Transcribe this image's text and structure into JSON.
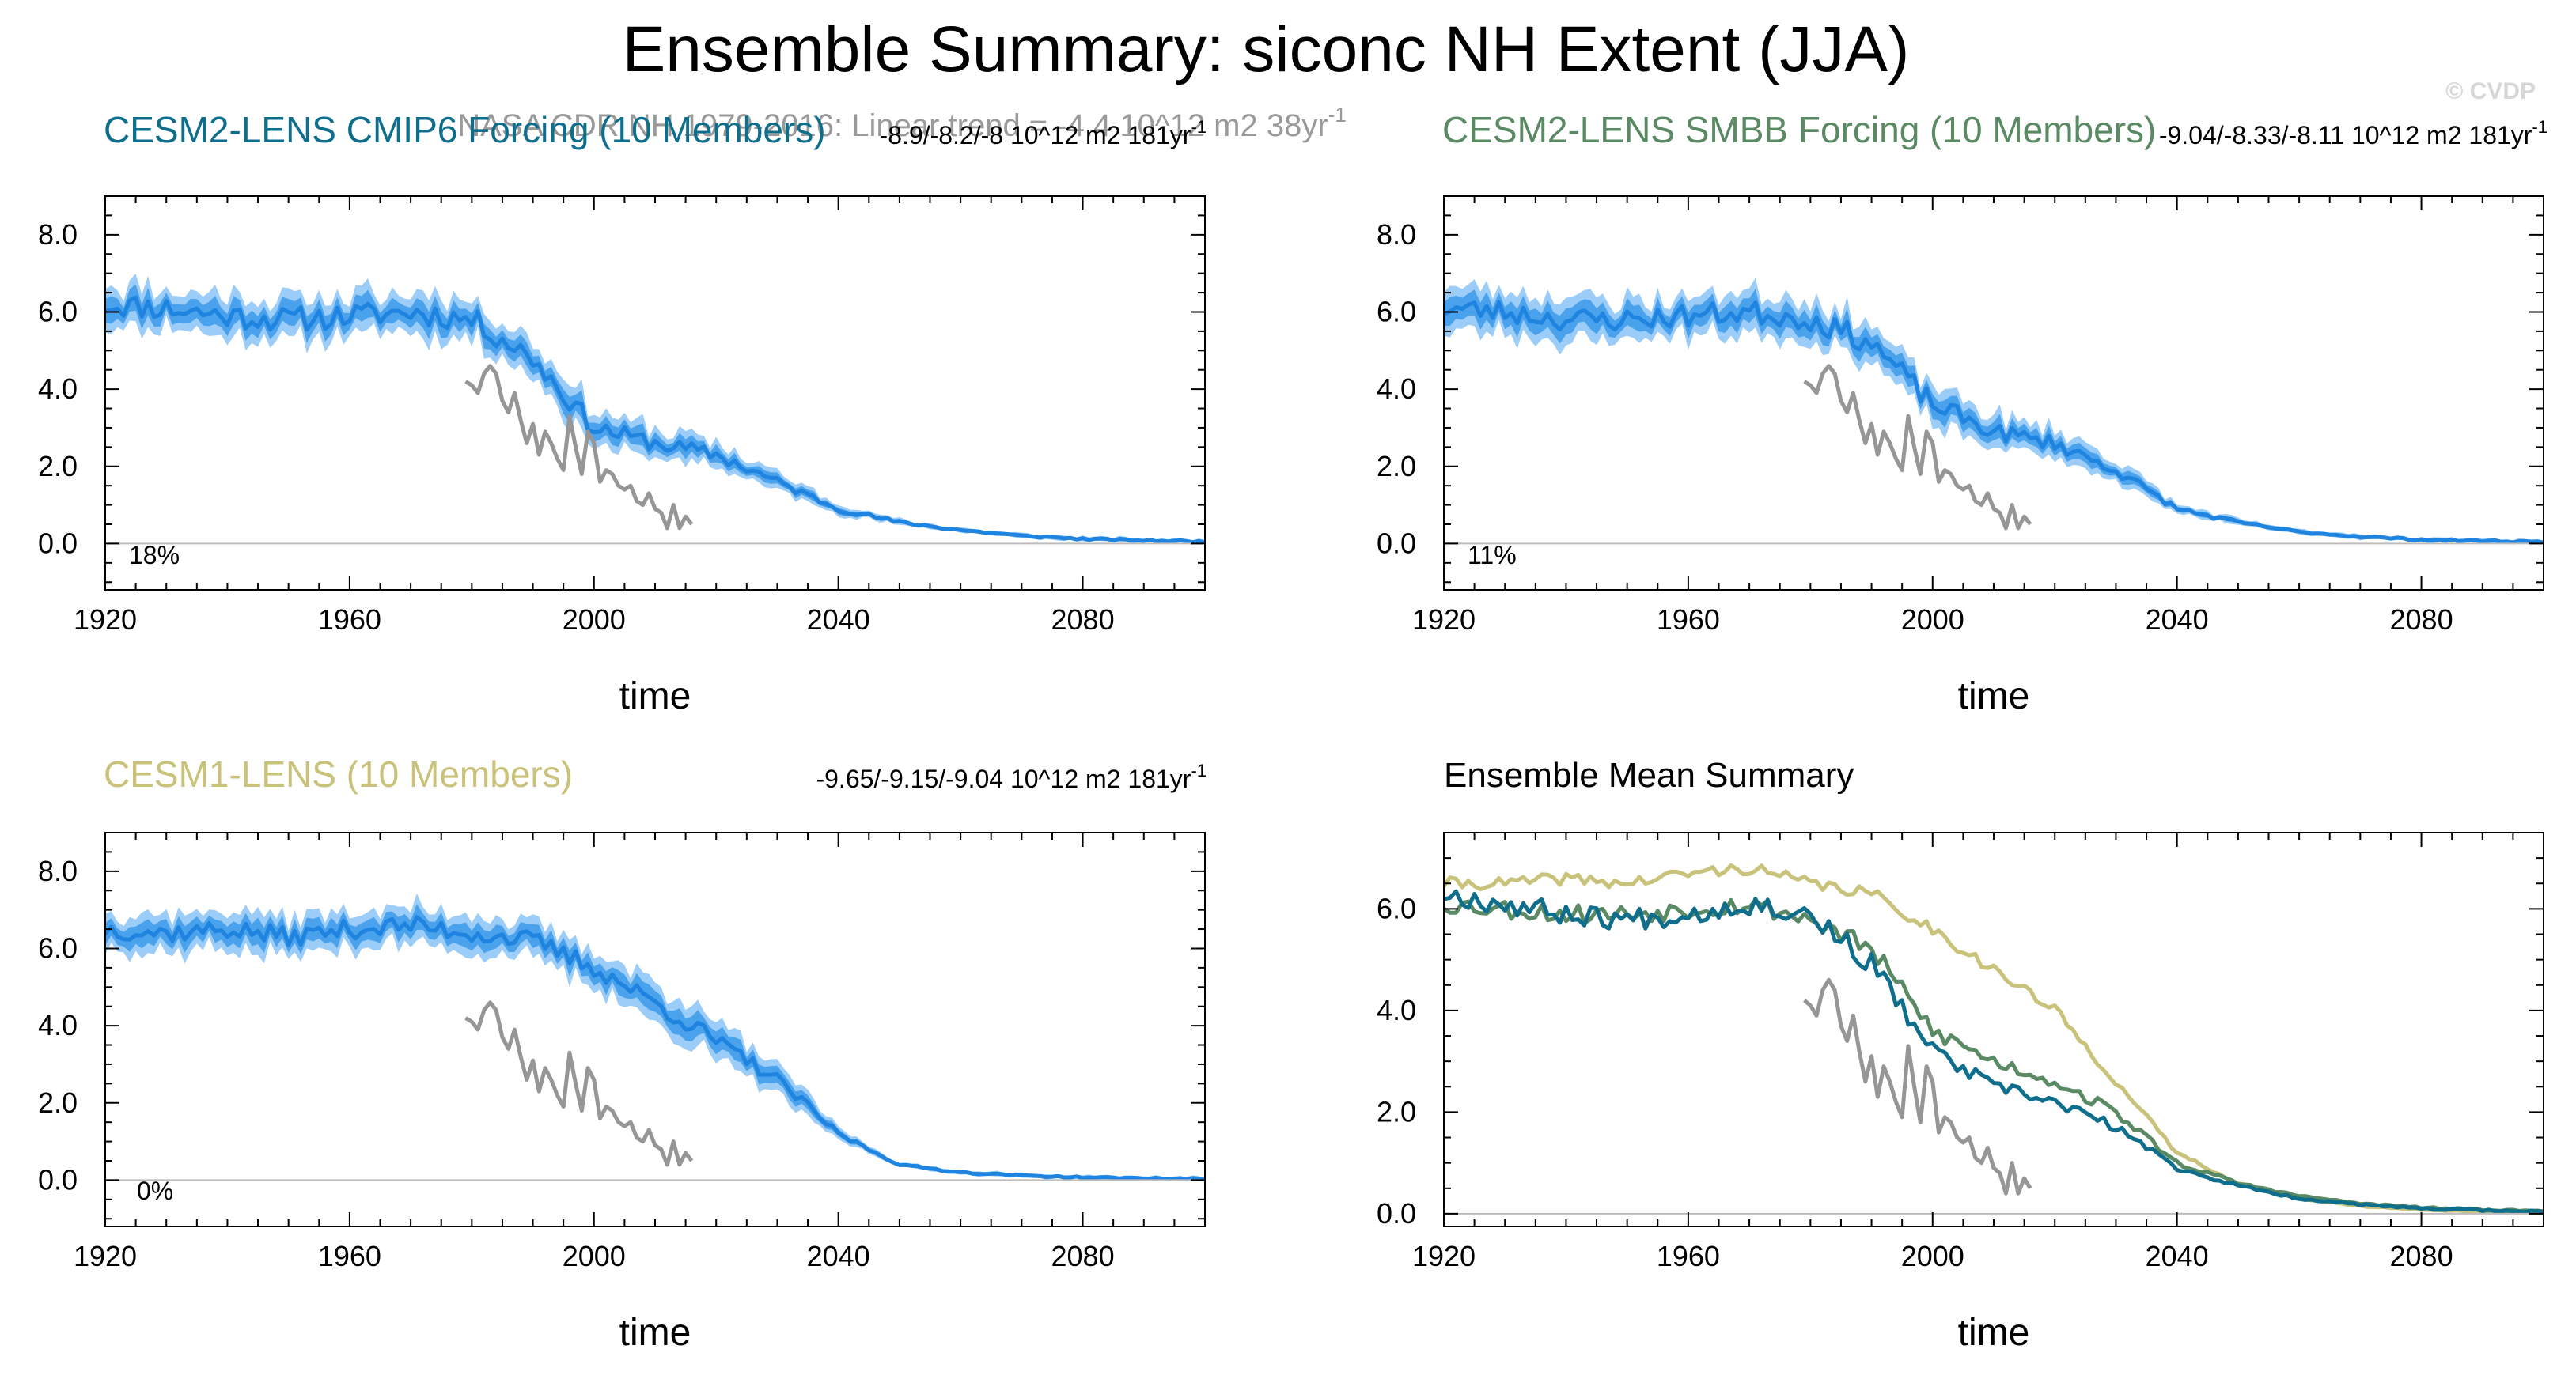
{
  "title": "Ensemble Summary: siconc NH Extent (JJA)",
  "watermark": "© CVDP",
  "obs_note": "NASA CDR NH 1979-2016: Linear trend = -4.4 10^12 m2 38yr",
  "obs_note_sup": "-1",
  "colors": {
    "band_outer": "#9ccdf8",
    "band_inner": "#4aa2ec",
    "ens_mean": "#1e84e0",
    "obs": "#969696",
    "cesm2_cmip6": "#0f6e8c",
    "cesm2_smbb": "#5a8a63",
    "cesm1": "#c8c27a",
    "axis": "#000000",
    "zero_line": "#bdbdbd"
  },
  "chart_data": [
    {
      "type": "area",
      "panel": "top-left",
      "title": "CESM2-LENS CMIP6 Forcing (10 Members)",
      "title_color": "#0f6e8c",
      "trend_text": "-8.9/-8.2/-8 10^12 m2 181yr",
      "trend_sup": "-1",
      "percent_label": "18%",
      "xlabel": "time",
      "ylabel": "",
      "xlim": [
        1920,
        2100
      ],
      "ylim": [
        -1.2,
        9.0
      ],
      "xticks": [
        1920,
        1960,
        2000,
        2040,
        2080
      ],
      "yticks": [
        0.0,
        2.0,
        4.0,
        6.0,
        8.0
      ],
      "ytick_labels": [
        "0.0",
        "2.0",
        "4.0",
        "6.0",
        "8.0"
      ],
      "mean_keypoints": [
        [
          1920,
          6.2
        ],
        [
          1930,
          6.1
        ],
        [
          1940,
          5.9
        ],
        [
          1950,
          5.8
        ],
        [
          1960,
          5.9
        ],
        [
          1970,
          6.0
        ],
        [
          1980,
          5.8
        ],
        [
          1990,
          4.8
        ],
        [
          2000,
          3.0
        ],
        [
          2010,
          2.6
        ],
        [
          2020,
          2.3
        ],
        [
          2030,
          1.6
        ],
        [
          2040,
          0.9
        ],
        [
          2050,
          0.55
        ],
        [
          2060,
          0.35
        ],
        [
          2070,
          0.2
        ],
        [
          2080,
          0.12
        ],
        [
          2090,
          0.08
        ],
        [
          2100,
          0.05
        ]
      ],
      "noise": 0.32,
      "spread": 0.45,
      "seed": 11
    },
    {
      "type": "area",
      "panel": "top-right",
      "title": "CESM2-LENS SMBB Forcing (10 Members)",
      "title_color": "#5a8a63",
      "trend_text": "-9.04/-8.33/-8.11 10^12 m2 181yr",
      "trend_sup": "-1",
      "percent_label": "11%",
      "xlabel": "time",
      "ylabel": "",
      "xlim": [
        1920,
        2100
      ],
      "ylim": [
        -1.2,
        9.0
      ],
      "xticks": [
        1920,
        1960,
        2000,
        2040,
        2080
      ],
      "yticks": [
        0.0,
        2.0,
        4.0,
        6.0,
        8.0
      ],
      "ytick_labels": [
        "0.0",
        "2.0",
        "4.0",
        "6.0",
        "8.0"
      ],
      "mean_keypoints": [
        [
          1920,
          6.1
        ],
        [
          1930,
          6.0
        ],
        [
          1940,
          5.8
        ],
        [
          1950,
          5.8
        ],
        [
          1960,
          5.9
        ],
        [
          1970,
          6.0
        ],
        [
          1980,
          5.8
        ],
        [
          1990,
          5.2
        ],
        [
          2000,
          3.6
        ],
        [
          2010,
          2.9
        ],
        [
          2020,
          2.6
        ],
        [
          2030,
          1.9
        ],
        [
          2040,
          0.9
        ],
        [
          2050,
          0.55
        ],
        [
          2060,
          0.3
        ],
        [
          2070,
          0.18
        ],
        [
          2080,
          0.1
        ],
        [
          2090,
          0.07
        ],
        [
          2100,
          0.04
        ]
      ],
      "noise": 0.3,
      "spread": 0.45,
      "seed": 23
    },
    {
      "type": "area",
      "panel": "bottom-left",
      "title": "CESM1-LENS (10 Members)",
      "title_color": "#c8c27a",
      "trend_text": "-9.65/-9.15/-9.04 10^12 m2 181yr",
      "trend_sup": "-1",
      "percent_label": "0%",
      "xlabel": "time",
      "ylabel": "",
      "xlim": [
        1920,
        2100
      ],
      "ylim": [
        -1.2,
        9.0
      ],
      "xticks": [
        1920,
        1960,
        2000,
        2040,
        2080
      ],
      "yticks": [
        0.0,
        2.0,
        4.0,
        6.0,
        8.0
      ],
      "ytick_labels": [
        "0.0",
        "2.0",
        "4.0",
        "6.0",
        "8.0"
      ],
      "mean_keypoints": [
        [
          1920,
          6.5
        ],
        [
          1930,
          6.4
        ],
        [
          1940,
          6.5
        ],
        [
          1950,
          6.3
        ],
        [
          1960,
          6.5
        ],
        [
          1970,
          6.6
        ],
        [
          1980,
          6.4
        ],
        [
          1990,
          6.2
        ],
        [
          2000,
          5.5
        ],
        [
          2010,
          4.6
        ],
        [
          2020,
          3.6
        ],
        [
          2030,
          2.6
        ],
        [
          2040,
          1.2
        ],
        [
          2050,
          0.4
        ],
        [
          2060,
          0.2
        ],
        [
          2070,
          0.12
        ],
        [
          2080,
          0.07
        ],
        [
          2090,
          0.05
        ],
        [
          2100,
          0.03
        ]
      ],
      "noise": 0.25,
      "spread": 0.42,
      "seed": 37
    },
    {
      "type": "line",
      "panel": "bottom-right",
      "title": "Ensemble Mean Summary",
      "title_color": "#000000",
      "xlabel": "time",
      "ylabel": "",
      "xlim": [
        1920,
        2100
      ],
      "ylim": [
        -0.25,
        7.5
      ],
      "xticks": [
        1920,
        1960,
        2000,
        2040,
        2080
      ],
      "yticks": [
        0.0,
        2.0,
        4.0,
        6.0
      ],
      "ytick_labels": [
        "0.0",
        "2.0",
        "4.0",
        "6.0"
      ],
      "series": [
        {
          "name": "CESM1-LENS",
          "color": "#c8c27a",
          "seed": 41,
          "noise": 0.12,
          "keypoints": [
            [
              1920,
              6.5
            ],
            [
              1930,
              6.5
            ],
            [
              1940,
              6.6
            ],
            [
              1950,
              6.5
            ],
            [
              1960,
              6.7
            ],
            [
              1970,
              6.8
            ],
            [
              1980,
              6.5
            ],
            [
              1990,
              6.3
            ],
            [
              2000,
              5.6
            ],
            [
              2010,
              4.8
            ],
            [
              2020,
              4.0
            ],
            [
              2030,
              2.6
            ],
            [
              2040,
              1.2
            ],
            [
              2050,
              0.6
            ],
            [
              2060,
              0.3
            ],
            [
              2070,
              0.15
            ],
            [
              2080,
              0.08
            ],
            [
              2090,
              0.05
            ],
            [
              2100,
              0.03
            ]
          ]
        },
        {
          "name": "CESM2-LENS SMBB Forcing",
          "color": "#5a8a63",
          "seed": 53,
          "noise": 0.2,
          "keypoints": [
            [
              1920,
              6.1
            ],
            [
              1930,
              6.0
            ],
            [
              1940,
              5.9
            ],
            [
              1950,
              5.9
            ],
            [
              1960,
              6.0
            ],
            [
              1970,
              6.1
            ],
            [
              1980,
              5.8
            ],
            [
              1990,
              5.2
            ],
            [
              2000,
              3.6
            ],
            [
              2010,
              3.0
            ],
            [
              2020,
              2.6
            ],
            [
              2030,
              2.0
            ],
            [
              2040,
              1.0
            ],
            [
              2050,
              0.6
            ],
            [
              2060,
              0.35
            ],
            [
              2070,
              0.2
            ],
            [
              2080,
              0.12
            ],
            [
              2090,
              0.08
            ],
            [
              2100,
              0.05
            ]
          ]
        },
        {
          "name": "CESM2-LENS CMIP6 Forcing",
          "color": "#0f6e8c",
          "seed": 67,
          "noise": 0.22,
          "keypoints": [
            [
              1920,
              6.3
            ],
            [
              1930,
              6.1
            ],
            [
              1940,
              5.9
            ],
            [
              1950,
              5.8
            ],
            [
              1960,
              5.9
            ],
            [
              1970,
              6.1
            ],
            [
              1980,
              5.9
            ],
            [
              1990,
              4.9
            ],
            [
              2000,
              3.2
            ],
            [
              2010,
              2.5
            ],
            [
              2020,
              2.2
            ],
            [
              2030,
              1.7
            ],
            [
              2040,
              0.9
            ],
            [
              2050,
              0.55
            ],
            [
              2060,
              0.3
            ],
            [
              2070,
              0.18
            ],
            [
              2080,
              0.1
            ],
            [
              2090,
              0.07
            ],
            [
              2100,
              0.04
            ]
          ]
        }
      ]
    }
  ],
  "observations": {
    "name": "NASA CDR NH 1979-2016",
    "color": "#969696",
    "years": [
      1979,
      1980,
      1981,
      1982,
      1983,
      1984,
      1985,
      1986,
      1987,
      1988,
      1989,
      1990,
      1991,
      1992,
      1993,
      1994,
      1995,
      1996,
      1997,
      1998,
      1999,
      2000,
      2001,
      2002,
      2003,
      2004,
      2005,
      2006,
      2007,
      2008,
      2009,
      2010,
      2011,
      2012,
      2013,
      2014,
      2015,
      2016
    ],
    "values": [
      4.2,
      4.1,
      3.9,
      4.4,
      4.6,
      4.4,
      3.7,
      3.4,
      3.9,
      3.2,
      2.6,
      3.1,
      2.3,
      2.9,
      2.6,
      2.2,
      1.9,
      3.3,
      2.5,
      1.8,
      2.9,
      2.6,
      1.6,
      1.9,
      1.8,
      1.5,
      1.4,
      1.5,
      1.1,
      1.0,
      1.3,
      0.9,
      0.8,
      0.4,
      1.0,
      0.4,
      0.7,
      0.5
    ]
  }
}
